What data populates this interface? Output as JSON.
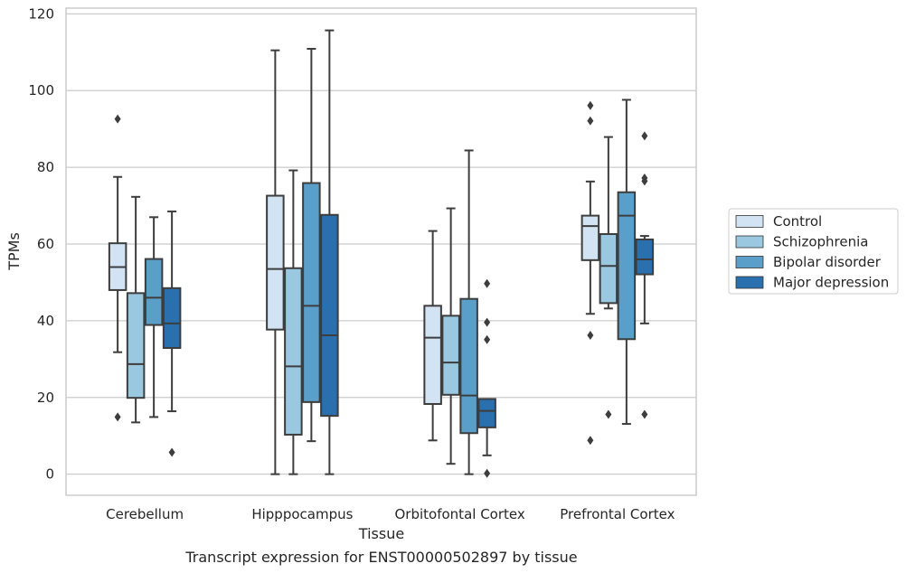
{
  "caption": "Transcript expression for ENST00000502897 by tissue",
  "chart_data": {
    "type": "box",
    "xlabel": "Tissue",
    "ylabel": "TPMs",
    "ylim": [
      -5.5,
      121.5
    ],
    "yticks": [
      0,
      20,
      40,
      60,
      80,
      100,
      120
    ],
    "grid": "horizontal",
    "legend_position": "right",
    "categories": [
      "Cerebellum",
      "Hipppocampus",
      "Orbitofontal Cortex",
      "Prefrontal Cortex"
    ],
    "series": [
      {
        "name": "Control",
        "color": "#d2e3f3",
        "boxes": [
          {
            "whisker_low": 31.8,
            "q1": 48.0,
            "median": 54.0,
            "q3": 60.2,
            "whisker_high": 77.5,
            "outliers": [
              14.9,
              92.6
            ]
          },
          {
            "whisker_low": 0.0,
            "q1": 37.7,
            "median": 53.5,
            "q3": 72.6,
            "whisker_high": 110.5,
            "outliers": []
          },
          {
            "whisker_low": 8.8,
            "q1": 18.3,
            "median": 35.6,
            "q3": 43.9,
            "whisker_high": 63.4,
            "outliers": []
          },
          {
            "whisker_low": 41.8,
            "q1": 55.8,
            "median": 64.7,
            "q3": 67.4,
            "whisker_high": 76.3,
            "outliers": [
              8.8,
              36.2,
              92.1,
              96.1
            ]
          }
        ]
      },
      {
        "name": "Schizophrenia",
        "color": "#9ac8e0",
        "boxes": [
          {
            "whisker_low": 13.5,
            "q1": 19.9,
            "median": 28.7,
            "q3": 47.2,
            "whisker_high": 72.3,
            "outliers": []
          },
          {
            "whisker_low": 0.0,
            "q1": 10.3,
            "median": 28.1,
            "q3": 53.7,
            "whisker_high": 79.2,
            "outliers": []
          },
          {
            "whisker_low": 2.7,
            "q1": 20.7,
            "median": 29.1,
            "q3": 41.3,
            "whisker_high": 69.3,
            "outliers": []
          },
          {
            "whisker_low": 43.2,
            "q1": 44.6,
            "median": 54.3,
            "q3": 62.6,
            "whisker_high": 87.9,
            "outliers": [
              15.6
            ]
          }
        ]
      },
      {
        "name": "Bipolar disorder",
        "color": "#5a9fca",
        "boxes": [
          {
            "whisker_low": 14.9,
            "q1": 38.9,
            "median": 46.0,
            "q3": 56.1,
            "whisker_high": 67.0,
            "outliers": []
          },
          {
            "whisker_low": 8.6,
            "q1": 18.8,
            "median": 43.9,
            "q3": 75.9,
            "whisker_high": 110.9,
            "outliers": []
          },
          {
            "whisker_low": 0.0,
            "q1": 10.7,
            "median": 20.5,
            "q3": 45.7,
            "whisker_high": 84.4,
            "outliers": []
          },
          {
            "whisker_low": 13.1,
            "q1": 35.2,
            "median": 67.4,
            "q3": 73.5,
            "whisker_high": 97.6,
            "outliers": []
          }
        ]
      },
      {
        "name": "Major depression",
        "color": "#2a6fae",
        "boxes": [
          {
            "whisker_low": 16.4,
            "q1": 32.9,
            "median": 39.3,
            "q3": 48.5,
            "whisker_high": 68.5,
            "outliers": [
              5.7
            ]
          },
          {
            "whisker_low": 0.0,
            "q1": 15.2,
            "median": 36.2,
            "q3": 67.6,
            "whisker_high": 115.7,
            "outliers": []
          },
          {
            "whisker_low": 4.9,
            "q1": 12.2,
            "median": 16.5,
            "q3": 19.6,
            "whisker_high": 19.6,
            "outliers": [
              0.2,
              35.1,
              39.6,
              49.7
            ]
          },
          {
            "whisker_low": 39.3,
            "q1": 52.1,
            "median": 56.0,
            "q3": 61.2,
            "whisker_high": 62.1,
            "outliers": [
              15.6,
              76.4,
              77.2,
              88.2
            ]
          }
        ]
      }
    ]
  }
}
